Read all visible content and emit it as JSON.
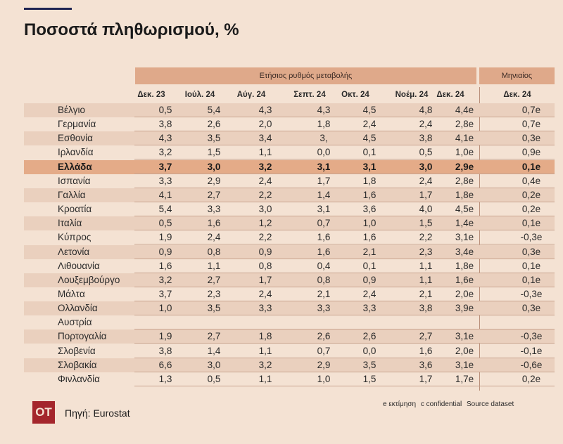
{
  "title": "Ποσοστά πληθωρισμού, %",
  "group_annual": "Ετήσιος ρυθμός μεταβολής",
  "group_monthly": "Μηνιαίος",
  "columns": [
    "Δεκ. 23",
    "Ιούλ. 24",
    "Αύγ. 24",
    "Σεπτ. 24",
    "Οκτ. 24",
    "Νοέμ. 24",
    "Δεκ. 24",
    "Δεκ. 24"
  ],
  "rows": [
    {
      "country": "Βέλγιο",
      "values": [
        "0,5",
        "5,4",
        "4,3",
        "4,3",
        "4,5",
        "4,8",
        "4,4e",
        "0,7e"
      ]
    },
    {
      "country": "Γερμανία",
      "values": [
        "3,8",
        "2,6",
        "2,0",
        "1,8",
        "2,4",
        "2,4",
        "2,8e",
        "0,7e"
      ]
    },
    {
      "country": "Εσθονία",
      "values": [
        "4,3",
        "3,5",
        "3,4",
        "3,",
        "4,5",
        "3,8",
        "4,1e",
        "0,3e"
      ]
    },
    {
      "country": "Ιρλανδία",
      "values": [
        "3,2",
        "1,5",
        "1,1",
        "0,0",
        "0,1",
        "0,5",
        "1,0e",
        "0,9e"
      ]
    },
    {
      "country": "Ελλάδα",
      "values": [
        "3,7",
        "3,0",
        "3,2",
        "3,1",
        "3,1",
        "3,0",
        "2,9e",
        "0,1e"
      ]
    },
    {
      "country": "Ισπανία",
      "values": [
        "3,3",
        "2,9",
        "2,4",
        "1,7",
        "1,8",
        "2,4",
        "2,8e",
        "0,4e"
      ]
    },
    {
      "country": "Γαλλία",
      "values": [
        "4,1",
        "2,7",
        "2,2",
        "1,4",
        "1,6",
        "1,7",
        "1,8e",
        "0,2e"
      ]
    },
    {
      "country": "Κροατία",
      "values": [
        "5,4",
        "3,3",
        "3,0",
        "3,1",
        "3,6",
        "4,0",
        "4,5e",
        "0,2e"
      ]
    },
    {
      "country": "Ιταλία",
      "values": [
        "0,5",
        "1,6",
        "1,2",
        "0,7",
        "1,0",
        "1,5",
        "1,4e",
        "0,1e"
      ]
    },
    {
      "country": "Κύπρος",
      "values": [
        "1,9",
        "2,4",
        "2,2",
        "1,6",
        "1,6",
        "2,2",
        "3,1e",
        "-0,3e"
      ]
    },
    {
      "country": "Λετονία",
      "values": [
        "0,9",
        "0,8",
        "0,9",
        "1,6",
        "2,1",
        "2,3",
        "3,4e",
        "0,3e"
      ]
    },
    {
      "country": "Λιθουανία",
      "values": [
        "1,6",
        "1,1",
        "0,8",
        "0,4",
        "0,1",
        "1,1",
        "1,8e",
        "0,1e"
      ]
    },
    {
      "country": "Λουξεμβούργο",
      "values": [
        "3,2",
        "2,7",
        "1,7",
        "0,8",
        "0,9",
        "1,1",
        "1,6e",
        "0,1e"
      ]
    },
    {
      "country": "Μάλτα",
      "values": [
        "3,7",
        "2,3",
        "2,4",
        "2,1",
        "2,4",
        "2,1",
        "2,0e",
        "-0,3e"
      ]
    },
    {
      "country": "Ολλανδία",
      "values": [
        "1,0",
        "3,5",
        "3,3",
        "3,3",
        "3,3",
        "3,8",
        "3,9e",
        "0,3e"
      ]
    },
    {
      "country": "Αυστρία",
      "values": [
        "",
        "",
        "",
        "",
        "",
        "",
        "",
        ""
      ]
    },
    {
      "country": "Πορτογαλία",
      "values": [
        "1,9",
        "2,7",
        "1,8",
        "2,6",
        "2,6",
        "2,7",
        "3,1e",
        "-0,3e"
      ]
    },
    {
      "country": "Σλοβενία",
      "values": [
        "3,8",
        "1,4",
        "1,1",
        "0,7",
        "0,0",
        "1,6",
        "2,0e",
        "-0,1e"
      ]
    },
    {
      "country": "Σλοβακία",
      "values": [
        "6,6",
        "3,0",
        "3,2",
        "2,9",
        "3,5",
        "3,6",
        "3,1e",
        "-0,6e"
      ]
    },
    {
      "country": "Φινλανδία",
      "values": [
        "1,3",
        "0,5",
        "1,1",
        "1,0",
        "1,5",
        "1,7",
        "1,7e",
        "0,2e"
      ]
    }
  ],
  "highlight_country": "Ελλάδα",
  "notes": [
    "e εκτίμηση",
    "c confidential",
    "Source dataset"
  ],
  "logo_text": "ΟΤ",
  "source": "Πηγή: Eurostat"
}
